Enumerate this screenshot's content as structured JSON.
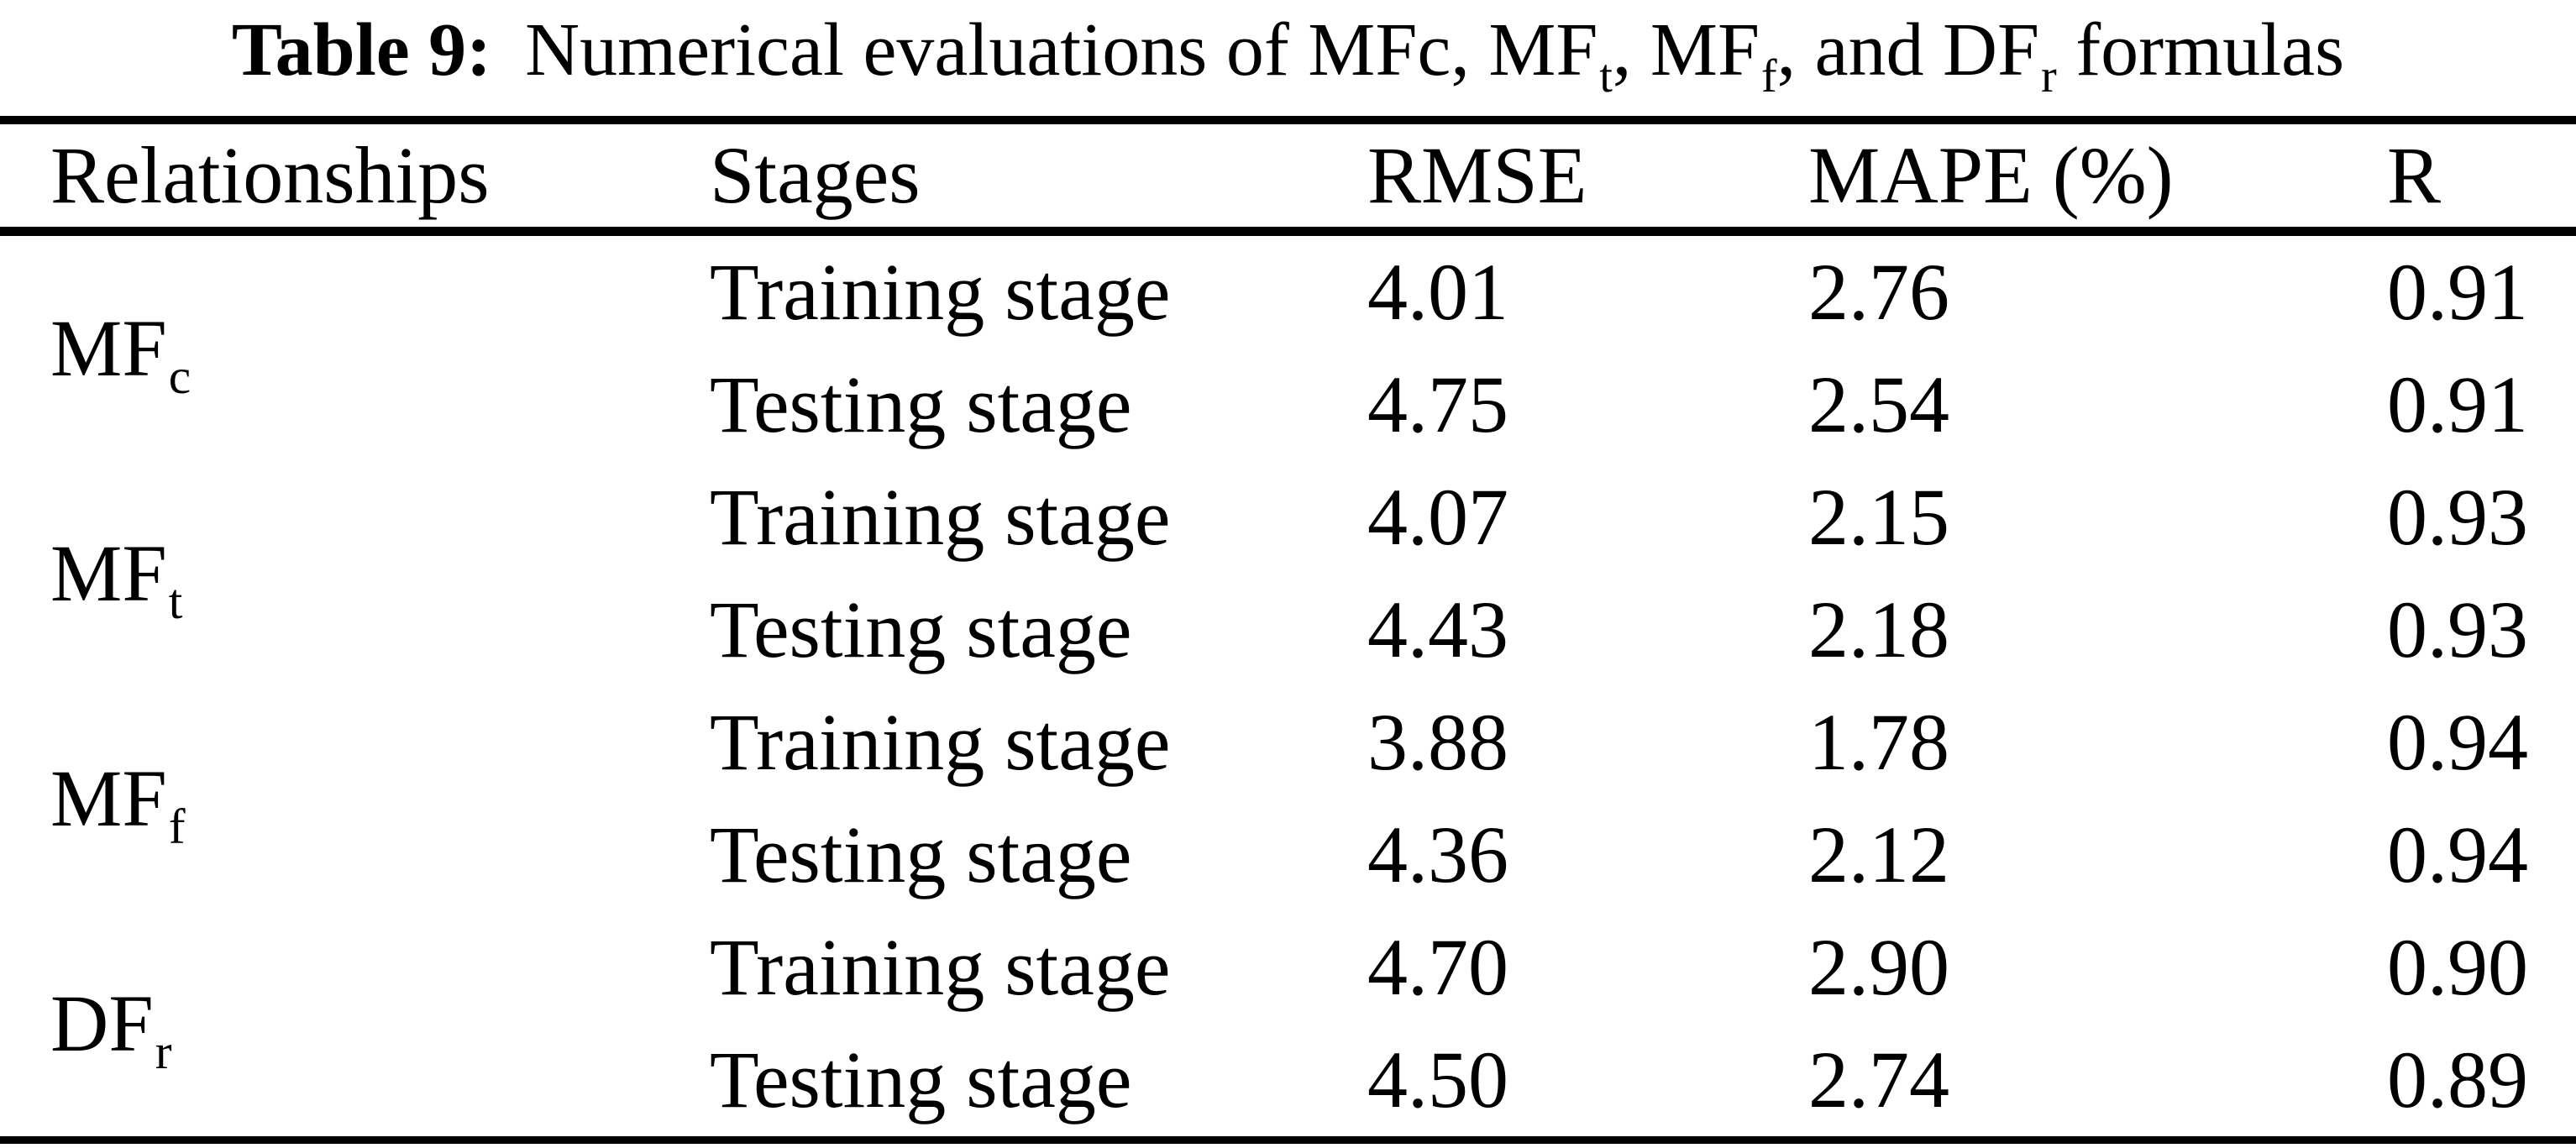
{
  "caption": {
    "label": "Table 9:",
    "part1": "Numerical evaluations of MFc, MF",
    "sub1": "t",
    "part2": ", MF",
    "sub2": "f",
    "part3": ", and DF",
    "sub3": "r",
    "part4": " formulas"
  },
  "table": {
    "headers": [
      "Relationships",
      "Stages",
      "RMSE",
      "MAPE (%)",
      "R"
    ],
    "groups": [
      {
        "name_base": "MF",
        "name_sub": "c",
        "rows": [
          {
            "stage": "Training stage",
            "rmse": "4.01",
            "mape": "2.76",
            "r": "0.91"
          },
          {
            "stage": "Testing stage",
            "rmse": "4.75",
            "mape": "2.54",
            "r": "0.91"
          }
        ]
      },
      {
        "name_base": "MF",
        "name_sub": "t",
        "rows": [
          {
            "stage": "Training stage",
            "rmse": "4.07",
            "mape": "2.15",
            "r": "0.93"
          },
          {
            "stage": "Testing stage",
            "rmse": "4.43",
            "mape": "2.18",
            "r": "0.93"
          }
        ]
      },
      {
        "name_base": "MF",
        "name_sub": "f",
        "rows": [
          {
            "stage": "Training stage",
            "rmse": "3.88",
            "mape": "1.78",
            "r": "0.94"
          },
          {
            "stage": "Testing stage",
            "rmse": "4.36",
            "mape": "2.12",
            "r": "0.94"
          }
        ]
      },
      {
        "name_base": "DF",
        "name_sub": "r",
        "rows": [
          {
            "stage": "Training stage",
            "rmse": "4.70",
            "mape": "2.90",
            "r": "0.90"
          },
          {
            "stage": "Testing stage",
            "rmse": "4.50",
            "mape": "2.74",
            "r": "0.89"
          }
        ]
      }
    ]
  }
}
